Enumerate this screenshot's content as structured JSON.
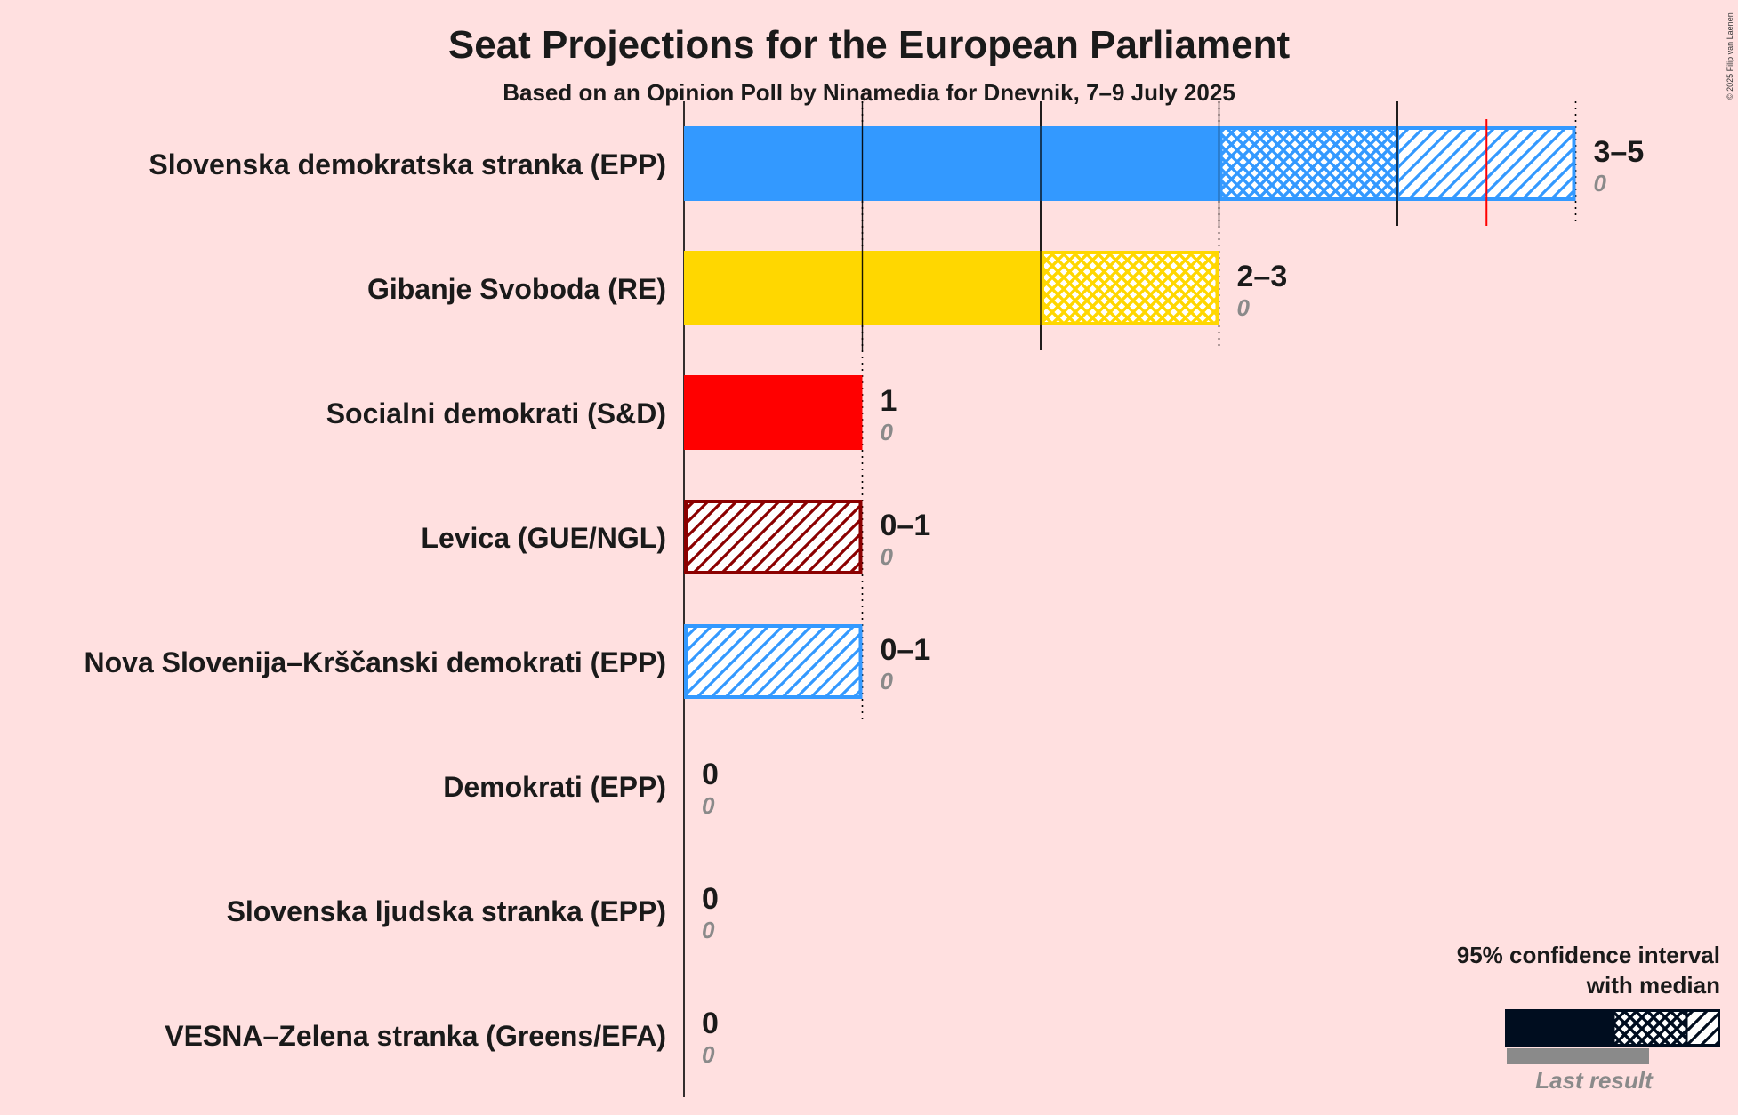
{
  "title": "Seat Projections for the European Parliament",
  "subtitle": "Based on an Opinion Poll by Ninamedia for Dnevnik, 7–9 July 2025",
  "copyright": "© 2025 Filip van Laenen",
  "legend": {
    "title_line1": "95% confidence interval",
    "title_line2": "with median",
    "last_result_label": "Last result"
  },
  "colors": {
    "background": "#FFE0E0",
    "legend_bar": "#000D1F",
    "median_marker": "#FF0000",
    "last_result": "#8A8A8A"
  },
  "chart_data": {
    "type": "bar",
    "orientation": "horizontal",
    "xlim": [
      0,
      5
    ],
    "grid": true,
    "legend_position": "bottom-right",
    "parties": [
      {
        "name": "Slovenska demokratska stranka (EPP)",
        "ci_low": 3,
        "median": 4,
        "ci_high": 5,
        "range_label": "3–5",
        "last_result": 0,
        "last_label": "0",
        "color": "#3399FF",
        "median_marker_value": 4.5
      },
      {
        "name": "Gibanje Svoboda (RE)",
        "ci_low": 2,
        "median": 3,
        "ci_high": 3,
        "range_label": "2–3",
        "last_result": 0,
        "last_label": "0",
        "color": "#FFD700"
      },
      {
        "name": "Socialni demokrati (S&D)",
        "ci_low": 1,
        "median": 1,
        "ci_high": 1,
        "range_label": "1",
        "last_result": 0,
        "last_label": "0",
        "color": "#FF0000"
      },
      {
        "name": "Levica (GUE/NGL)",
        "ci_low": 0,
        "median": 0,
        "ci_high": 1,
        "range_label": "0–1",
        "last_result": 0,
        "last_label": "0",
        "color": "#8B0000"
      },
      {
        "name": "Nova Slovenija–Krščanski demokrati (EPP)",
        "ci_low": 0,
        "median": 0,
        "ci_high": 1,
        "range_label": "0–1",
        "last_result": 0,
        "last_label": "0",
        "color": "#3399FF"
      },
      {
        "name": "Demokrati (EPP)",
        "ci_low": 0,
        "median": 0,
        "ci_high": 0,
        "range_label": "0",
        "last_result": 0,
        "last_label": "0",
        "color": "#3399FF"
      },
      {
        "name": "Slovenska ljudska stranka (EPP)",
        "ci_low": 0,
        "median": 0,
        "ci_high": 0,
        "range_label": "0",
        "last_result": 0,
        "last_label": "0",
        "color": "#3399FF"
      },
      {
        "name": "VESNA–Zelena stranka (Greens/EFA)",
        "ci_low": 0,
        "median": 0,
        "ci_high": 0,
        "range_label": "0",
        "last_result": 0,
        "last_label": "0",
        "color": "#6BBE4E"
      }
    ]
  }
}
